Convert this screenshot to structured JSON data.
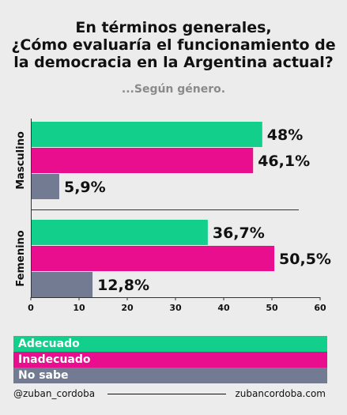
{
  "title_lines": [
    "En términos generales,",
    "¿Cómo evaluaría el funcionamiento de",
    "la democracia en la Argentina actual?"
  ],
  "subtitle": "...Según género.",
  "colors": {
    "Adecuado": "#12d08b",
    "Inadecuado": "#e90e8d",
    "No sabe": "#737b93"
  },
  "chart_data": {
    "type": "bar",
    "orientation": "horizontal",
    "title": "En términos generales, ¿Cómo evaluaría el funcionamiento de la democracia en la Argentina actual?",
    "subtitle": "...Según género.",
    "categories": [
      "Masculino",
      "Femenino"
    ],
    "series": [
      {
        "name": "Adecuado",
        "values": [
          48,
          36.7
        ],
        "labels": [
          "48%",
          "36,7%"
        ]
      },
      {
        "name": "Inadecuado",
        "values": [
          46.1,
          50.5
        ],
        "labels": [
          "46,1%",
          "50,5%"
        ]
      },
      {
        "name": "No sabe",
        "values": [
          5.9,
          12.8
        ],
        "labels": [
          "5,9%",
          "12,8%"
        ]
      }
    ],
    "x_ticks": [
      "0",
      "10",
      "20",
      "30",
      "40",
      "50",
      "60"
    ],
    "xlim": [
      0,
      60
    ],
    "grid": false,
    "legend_position": "bottom"
  },
  "legend": [
    "Adecuado",
    "Inadecuado",
    "No sabe"
  ],
  "footer": {
    "left": "@zuban_cordoba",
    "right": "zubancordoba.com"
  }
}
